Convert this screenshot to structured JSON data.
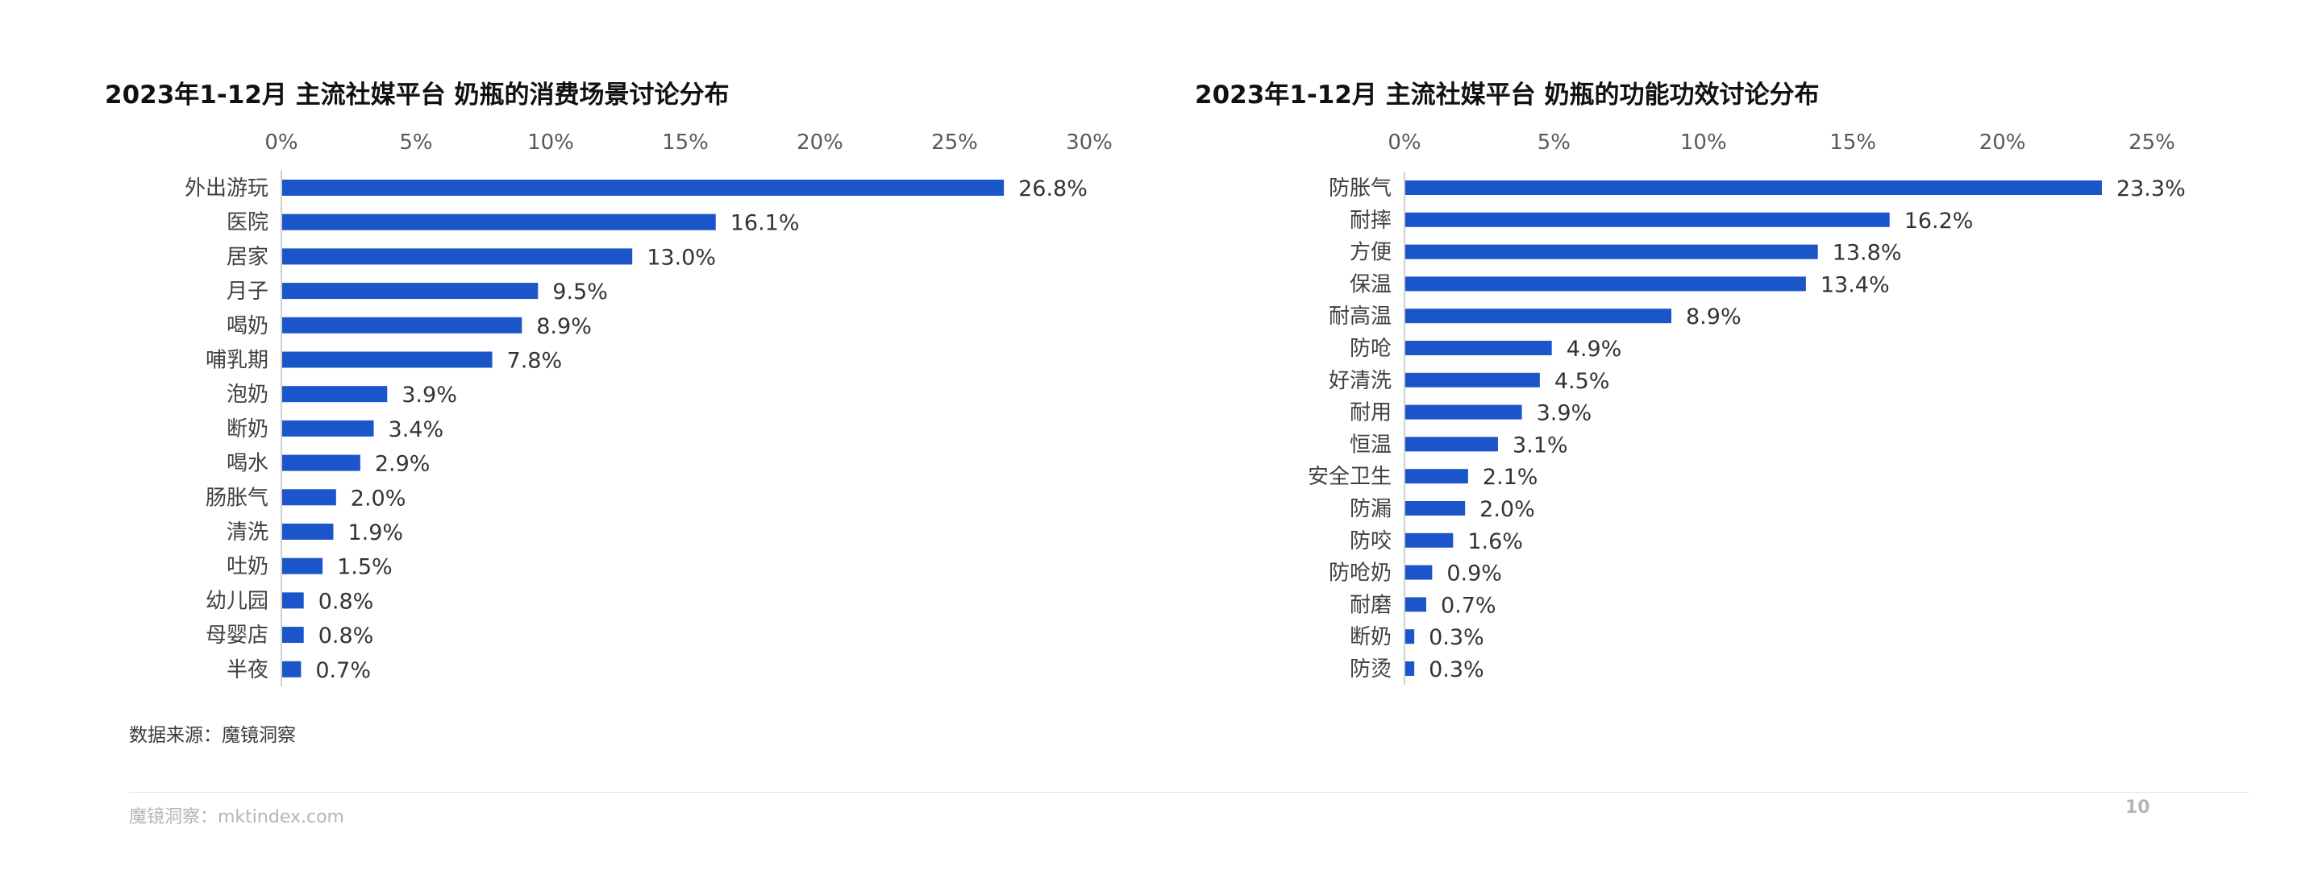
{
  "chart_data": [
    {
      "type": "bar",
      "orientation": "horizontal",
      "title": "2023年1-12月 主流社媒平台 奶瓶的消费场景讨论分布",
      "categories": [
        "外出游玩",
        "医院",
        "居家",
        "月子",
        "喝奶",
        "哺乳期",
        "泡奶",
        "断奶",
        "喝水",
        "肠胀气",
        "清洗",
        "吐奶",
        "幼儿园",
        "母婴店",
        "半夜"
      ],
      "values": [
        26.8,
        16.1,
        13.0,
        9.5,
        8.9,
        7.8,
        3.9,
        3.4,
        2.9,
        2.0,
        1.9,
        1.5,
        0.8,
        0.8,
        0.7
      ],
      "value_labels": [
        "26.8%",
        "16.1%",
        "13.0%",
        "9.5%",
        "8.9%",
        "7.8%",
        "3.9%",
        "3.4%",
        "2.9%",
        "2.0%",
        "1.9%",
        "1.5%",
        "0.8%",
        "0.8%",
        "0.7%"
      ],
      "axis_ticks": [
        0,
        5,
        10,
        15,
        20,
        25,
        30
      ],
      "axis_tick_labels": [
        "0%",
        "5%",
        "10%",
        "15%",
        "20%",
        "25%",
        "30%"
      ],
      "xlim": [
        0,
        30
      ],
      "value_axis_position": "top",
      "grid": false,
      "legend": "none",
      "bar_color": "#1a55c9"
    },
    {
      "type": "bar",
      "orientation": "horizontal",
      "title": "2023年1-12月 主流社媒平台 奶瓶的功能功效讨论分布",
      "categories": [
        "防胀气",
        "耐摔",
        "方便",
        "保温",
        "耐高温",
        "防呛",
        "好清洗",
        "耐用",
        "恒温",
        "安全卫生",
        "防漏",
        "防咬",
        "防呛奶",
        "耐磨",
        "断奶",
        "防烫"
      ],
      "values": [
        23.3,
        16.2,
        13.8,
        13.4,
        8.9,
        4.9,
        4.5,
        3.9,
        3.1,
        2.1,
        2.0,
        1.6,
        0.9,
        0.7,
        0.3,
        0.3
      ],
      "value_labels": [
        "23.3%",
        "16.2%",
        "13.8%",
        "13.4%",
        "8.9%",
        "4.9%",
        "4.5%",
        "3.9%",
        "3.1%",
        "2.1%",
        "2.0%",
        "1.6%",
        "0.9%",
        "0.7%",
        "0.3%",
        "0.3%"
      ],
      "axis_ticks": [
        0,
        5,
        10,
        15,
        20,
        25
      ],
      "axis_tick_labels": [
        "0%",
        "5%",
        "10%",
        "15%",
        "20%",
        "25%"
      ],
      "xlim": [
        0,
        25
      ],
      "value_axis_position": "top",
      "grid": false,
      "legend": "none",
      "bar_color": "#1a55c9"
    }
  ],
  "source_note": "数据来源：魔镜洞察",
  "footer": {
    "site": "魔镜洞察：mktindex.com",
    "page_number": "10"
  },
  "colors": {
    "bar": "#1a55c9",
    "axis_line": "#bfbfbf",
    "footer_text": "#b5b5b5"
  }
}
